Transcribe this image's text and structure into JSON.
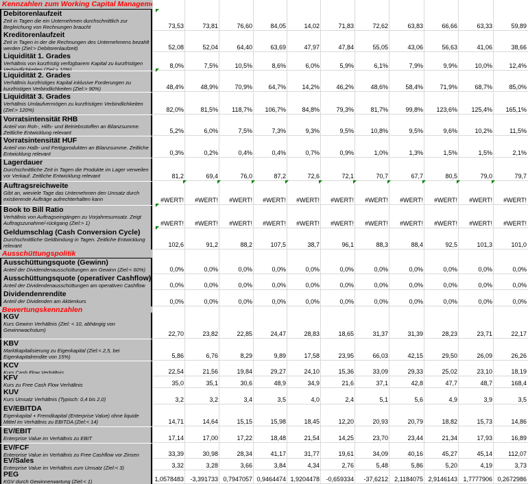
{
  "sections": [
    {
      "title": "Kennzahlen zum Working Capital Management"
    },
    {
      "title": "Ausschüttungspolitik"
    },
    {
      "title": "Bewertungskennzahlen"
    }
  ],
  "rows": [
    {
      "title": "Debitorenlaufzeit",
      "desc": "Zeit in Tagen die ein Unternehmen durchschnittlich zur Begleichung von Rechnungen braucht",
      "values": [
        "73,53",
        "73,81",
        "76,60",
        "84,05",
        "14,02",
        "71,83",
        "72,62",
        "63,83",
        "66,66",
        "63,33",
        "59,89"
      ]
    },
    {
      "title": "Kreditorenlaufzeit",
      "desc": "Zeit in Tagen in der die Rechnungen des Unternehmens bezahlt werden (Ziel:> Debitorenlaufzeit)",
      "values": [
        "52,08",
        "52,04",
        "64,40",
        "63,69",
        "47,97",
        "47,84",
        "55,05",
        "43,06",
        "56,63",
        "41,06",
        "38,66"
      ]
    },
    {
      "title": "Liquidität 1. Grades",
      "desc": "Verhältnis von kurzfristig verfügbarem Kapital zu kurzfristigen Verbindlichkeiten (Ziel:> 10%)",
      "values": [
        "8,0%",
        "7,5%",
        "10,5%",
        "8,6%",
        "6,0%",
        "5,9%",
        "6,1%",
        "7,9%",
        "9,9%",
        "10,0%",
        "12,4%"
      ]
    },
    {
      "title": "Liquidität 2. Grades",
      "desc": "Verhältnis kurzfristiges Kapital inklusive Forderungen zu kurzfristigen Verbindlichkeiten (Ziel:> 90%)",
      "values": [
        "48,4%",
        "48,9%",
        "70,9%",
        "64,7%",
        "14,2%",
        "46,2%",
        "48,6%",
        "58,4%",
        "71,9%",
        "68,7%",
        "85,0%"
      ]
    },
    {
      "title": "Liquidität 3. Grades",
      "desc": "Verhältnis Umlaufvermögen zu kurzfristigen Verbindlichkeiten (Ziel:> 120%)",
      "values": [
        "82,0%",
        "81,5%",
        "118,7%",
        "106,7%",
        "84,8%",
        "79,3%",
        "81,7%",
        "99,8%",
        "123,6%",
        "125,4%",
        "165,1%"
      ]
    },
    {
      "title": "Vorratsintensität RHB",
      "desc": "Anteil von Roh-, Hilfs- und Betriebsstoffen an Bilanzsumme. Zeitliche Entwicklung relevant",
      "values": [
        "5,2%",
        "6,0%",
        "7,5%",
        "7,3%",
        "9,3%",
        "9,5%",
        "10,8%",
        "9,5%",
        "9,6%",
        "10,2%",
        "11,5%"
      ]
    },
    {
      "title": "Vorratsintensität HUF",
      "desc": "Anteil von Halb- und Fertigprodukten an Bilanzsumme. Zeitliche Entwicklung relevant",
      "values": [
        "0,3%",
        "0,2%",
        "0,4%",
        "0,4%",
        "0,7%",
        "0,9%",
        "1,0%",
        "1,3%",
        "1,5%",
        "1,5%",
        "2,1%"
      ]
    },
    {
      "title": "Lagerdauer",
      "desc": "Durchschnittliche Zeit in Tagen die Produkte im Lager verweilen vor Verkauf. Zeitliche Entwicklung relevant",
      "values": [
        "81,2",
        "69,4",
        "76,0",
        "87,2",
        "72,6",
        "72,1",
        "70,7",
        "67,7",
        "80,5",
        "79,0",
        "79,7"
      ]
    },
    {
      "title": "Auftragsreichweite",
      "desc": "Gibt an, wieviele Tage das Unternehmen den Umsatz durch existierende Aufträge aufrechterhalten kann",
      "values": [
        "#WERT!",
        "#WERT!",
        "#WERT!",
        "#WERT!",
        "#WERT!",
        "#WERT!",
        "#WERT!",
        "#WERT!",
        "#WERT!",
        "#WERT!",
        "#WERT!"
      ]
    },
    {
      "title": "Book to Bill Ratio",
      "desc": "Verhältnis von Auftragseingängen zu Vorjahresumsatz. Zeigt Auftragszunahme/-rückgang (Ziel:> 1)",
      "values": [
        "#WERT!",
        "#WERT!",
        "#WERT!",
        "#WERT!",
        "#WERT!",
        "#WERT!",
        "#WERT!",
        "#WERT!",
        "#WERT!",
        "#WERT!",
        "#WERT!"
      ]
    },
    {
      "title": "Geldumschlag (Cash Conversion Cycle)",
      "desc": "Durchschnittliche Geldbindung in Tagen. Zeitliche Entwicklung relevant",
      "values": [
        "102,6",
        "91,2",
        "88,2",
        "107,5",
        "38,7",
        "96,1",
        "88,3",
        "88,4",
        "92,5",
        "101,3",
        "101,0"
      ]
    },
    {
      "title": "Ausschüttungsquote (Gewinn)",
      "desc": "Anteil der Dividendenausschüttungen am Gewinn (Ziel:< 60%)",
      "values": [
        "0,0%",
        "0,0%",
        "0,0%",
        "0,0%",
        "0,0%",
        "0,0%",
        "0,0%",
        "0,0%",
        "0,0%",
        "0,0%",
        "0,0%"
      ]
    },
    {
      "title": "Ausschüttungsquote (operativer Cashflow)",
      "desc": "Anteil der Dividendenausschüttungen am operativen Cashflow (Ziel:<",
      "values": [
        "0,0%",
        "0,0%",
        "0,0%",
        "0,0%",
        "0,0%",
        "0,0%",
        "0,0%",
        "0,0%",
        "0,0%",
        "0,0%",
        "0,0%"
      ]
    },
    {
      "title": "Dividendenrendite",
      "desc": "Anteil der Dividenden am Aktienkurs",
      "values": [
        "0,0%",
        "0,0%",
        "0,0%",
        "0,0%",
        "0,0%",
        "0,0%",
        "0,0%",
        "0,0%",
        "0,0%",
        "0,0%",
        "0,0%"
      ]
    },
    {
      "title": "KGV",
      "desc": "Kurs Gewinn Verhältnis (Ziel: < 10, abhängig von Gewinnwachstum)",
      "values": [
        "22,70",
        "23,82",
        "22,85",
        "24,47",
        "28,83",
        "18,65",
        "31,37",
        "31,39",
        "28,23",
        "23,71",
        "22,17"
      ]
    },
    {
      "title": "KBV",
      "desc": "Marktkapitalisierung zu Eigenkapital (Ziel:< 2,5, bei Eigenkapitalrendite von 15%)",
      "values": [
        "5,86",
        "6,76",
        "8,29",
        "9,89",
        "17,58",
        "23,95",
        "66,03",
        "42,15",
        "29,50",
        "26,09",
        "26,26"
      ]
    },
    {
      "title": "KCV",
      "desc": "Kurs Cash Flow Verhältnis",
      "values": [
        "22,54",
        "21,56",
        "19,84",
        "29,27",
        "24,10",
        "15,36",
        "33,09",
        "29,33",
        "25,02",
        "23,10",
        "18,19"
      ]
    },
    {
      "title": "KFV",
      "desc": "Kurs zu Free Cash Flow Verhältnis",
      "values": [
        "35,0",
        "35,1",
        "30,6",
        "48,9",
        "34,9",
        "21,6",
        "37,1",
        "42,8",
        "47,7",
        "48,7",
        "168,4"
      ]
    },
    {
      "title": "KUV",
      "desc": "Kurs Umsatz Verhältnis (Typisch: 0,4 bis 2,0)",
      "values": [
        "3,2",
        "3,2",
        "3,4",
        "3,5",
        "4,0",
        "2,4",
        "5,1",
        "5,6",
        "4,9",
        "3,9",
        "3,5"
      ]
    },
    {
      "title": "EV/EBITDA",
      "desc": "Eigenkapital + Fremdkapital (Enterprise Value) ohne liquide Mittel im Verhältnis zu EBITDA (Ziel:< 14)",
      "values": [
        "14,71",
        "14,64",
        "15,15",
        "15,98",
        "18,45",
        "12,20",
        "20,93",
        "20,79",
        "18,82",
        "15,73",
        "14,86"
      ]
    },
    {
      "title": "EV/EBIT",
      "desc": "Enterprise Value im Verhältnis zu EBIT",
      "values": [
        "17,14",
        "17,00",
        "17,22",
        "18,48",
        "21,54",
        "14,25",
        "23,70",
        "23,44",
        "21,34",
        "17,93",
        "16,89"
      ]
    },
    {
      "title": "EV/FCF",
      "desc": "Enterprise Value im Verhältnis zu Free Cashflow vor Zinsen",
      "values": [
        "33,39",
        "30,98",
        "28,34",
        "41,17",
        "31,77",
        "19,61",
        "34,09",
        "40,16",
        "45,27",
        "45,14",
        "112,07"
      ]
    },
    {
      "title": "EV/Sales",
      "desc": "Enterprise Value im Verhältnis zum Umsatz (Ziel:< 3)",
      "values": [
        "3,32",
        "3,28",
        "3,66",
        "3,84",
        "4,34",
        "2,76",
        "5,48",
        "5,86",
        "5,20",
        "4,19",
        "3,73"
      ]
    },
    {
      "title": "PEG",
      "desc": "KGV durch Gewinnerwartung (Ziel:< 1)",
      "values": [
        "1,0578483",
        "-3,391733",
        "0,7947057",
        "0,9464474",
        "1,9204478",
        "-0,659334",
        "-37,6212",
        "2,1184075",
        "2,9146143",
        "1,7777906",
        "0,2672986"
      ]
    }
  ]
}
